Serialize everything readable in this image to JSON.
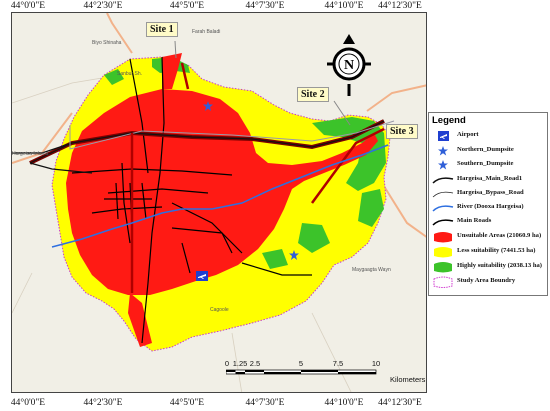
{
  "graticule": {
    "top": [
      "44°0'0\"E",
      "44°2'30\"E",
      "44°5'0\"E",
      "44°7'30\"E",
      "44°10'0\"E",
      "44°12'30\"E"
    ],
    "bottom": [
      "44°0'0\"E",
      "44°2'30\"E",
      "44°5'0\"E",
      "44°7'30\"E",
      "44°10'0\"E",
      "44°12'30\"E"
    ]
  },
  "sites": {
    "site1": "Site 1",
    "site2": "Site 2",
    "site3": "Site 3"
  },
  "places": [
    "Biyo Shinaha",
    "Farah Baladi",
    "Sanbur Sh.",
    "Cagoole",
    "Maygaagta Wayn",
    "Hargeisa Inlanta"
  ],
  "legend": {
    "title": "Legend",
    "items": [
      {
        "label": "Airport",
        "icon": "airplane-icon",
        "color": "#1f3fd0"
      },
      {
        "label": "Northern_Dumpsite",
        "icon": "star-icon",
        "color": "#2f5fd8"
      },
      {
        "label": "Southern_Dumpsite",
        "icon": "star-icon",
        "color": "#2f5fd8"
      },
      {
        "label": "Hargeisa_Main_Road1",
        "icon": "line",
        "color": "#111111"
      },
      {
        "label": "Hargeisa_Bypass_Road",
        "icon": "line",
        "color": "#222222"
      },
      {
        "label": "River (Dooxa Hargeisa)",
        "icon": "line",
        "color": "#2e6fe0"
      },
      {
        "label": "Main Roads",
        "icon": "line",
        "color": "#000000"
      },
      {
        "label": "Unsuitable Areas (21060.9 ha)",
        "icon": "patch",
        "color": "#ff1a14"
      },
      {
        "label": "Less suitability (7441.53 ha)",
        "icon": "patch",
        "color": "#ffff00"
      },
      {
        "label": "Highly suitability (2038.13 ha)",
        "icon": "patch",
        "color": "#3cc32a"
      },
      {
        "label": "Study Area Boundry",
        "icon": "patch-outline",
        "color": "#d03ad0"
      }
    ]
  },
  "scalebar": {
    "ticks": [
      "0",
      "1.25",
      "2.5",
      "5",
      "7.5",
      "10"
    ],
    "unit": "Kilometers"
  },
  "north_arrow": {
    "letter": "N"
  }
}
